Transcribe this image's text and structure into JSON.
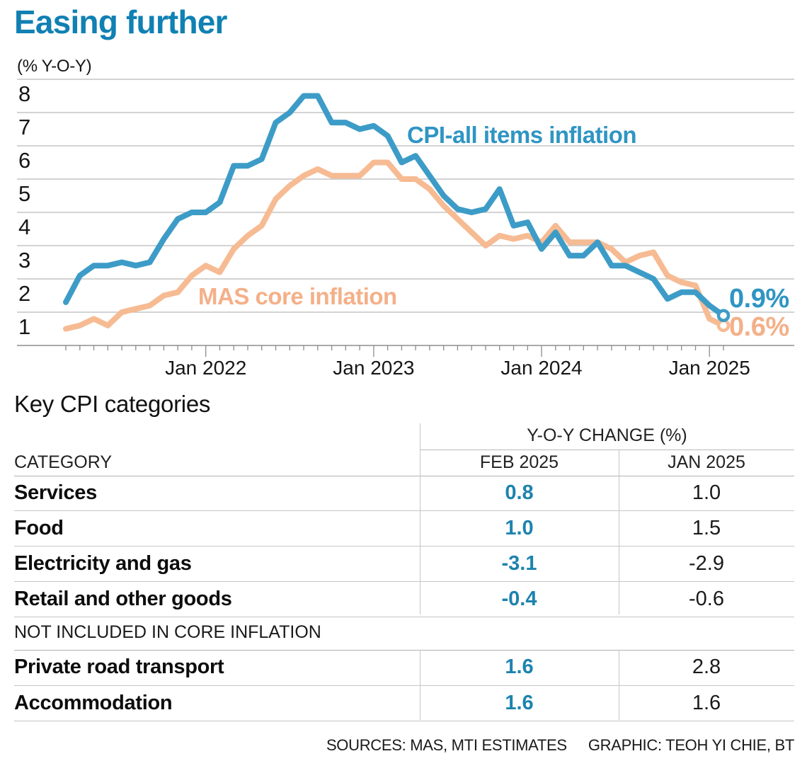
{
  "header": {
    "title": "Easing further"
  },
  "chart_data": {
    "type": "line",
    "title": "Easing further",
    "unit_label": "(% Y-O-Y)",
    "x_frequency": "monthly",
    "x_start": "Mar 2021",
    "x_end": "Feb 2025",
    "x_tick_labels": [
      "Jan 2022",
      "Jan 2023",
      "Jan 2024",
      "Jan 2025"
    ],
    "x_tick_month_index": [
      10,
      22,
      34,
      46
    ],
    "ylim": [
      0,
      8
    ],
    "yticks": [
      1,
      2,
      3,
      4,
      5,
      6,
      7,
      8
    ],
    "grid": true,
    "series": [
      {
        "name": "CPI-all items inflation",
        "color": "#3d9cc7",
        "label_color": "#2f95c3",
        "end_label": "0.9%",
        "values": [
          1.3,
          2.1,
          2.4,
          2.4,
          2.5,
          2.4,
          2.5,
          3.2,
          3.8,
          4.0,
          4.0,
          4.3,
          5.4,
          5.4,
          5.6,
          6.7,
          7.0,
          7.5,
          7.5,
          6.7,
          6.7,
          6.5,
          6.6,
          6.3,
          5.5,
          5.7,
          5.1,
          4.5,
          4.1,
          4.0,
          4.1,
          4.7,
          3.6,
          3.7,
          2.9,
          3.4,
          2.7,
          2.7,
          3.1,
          2.4,
          2.4,
          2.2,
          2.0,
          1.4,
          1.6,
          1.6,
          1.2,
          0.9
        ]
      },
      {
        "name": "MAS core inflation",
        "color": "#f6bb93",
        "label_color": "#f4b089",
        "end_label": "0.6%",
        "values": [
          0.5,
          0.6,
          0.8,
          0.6,
          1.0,
          1.1,
          1.2,
          1.5,
          1.6,
          2.1,
          2.4,
          2.2,
          2.9,
          3.3,
          3.6,
          4.4,
          4.8,
          5.1,
          5.3,
          5.1,
          5.1,
          5.1,
          5.5,
          5.5,
          5.0,
          5.0,
          4.7,
          4.2,
          3.8,
          3.4,
          3.0,
          3.3,
          3.2,
          3.3,
          3.1,
          3.6,
          3.1,
          3.1,
          3.1,
          2.9,
          2.5,
          2.7,
          2.8,
          2.1,
          1.9,
          1.8,
          0.8,
          0.6
        ]
      }
    ]
  },
  "table": {
    "title": "Key CPI categories",
    "group_header": "Y-O-Y CHANGE (%)",
    "columns": [
      "CATEGORY",
      "FEB 2025",
      "JAN 2025"
    ],
    "rows": [
      {
        "category": "Services",
        "feb": "0.8",
        "jan": "1.0"
      },
      {
        "category": "Food",
        "feb": "1.0",
        "jan": "1.5"
      },
      {
        "category": "Electricity and gas",
        "feb": "-3.1",
        "jan": "-2.9"
      },
      {
        "category": "Retail and other goods",
        "feb": "-0.4",
        "jan": "-0.6"
      }
    ],
    "section_note": "NOT INCLUDED IN CORE INFLATION",
    "rows_excluded": [
      {
        "category": "Private road transport",
        "feb": "1.6",
        "jan": "2.8"
      },
      {
        "category": "Accommodation",
        "feb": "1.6",
        "jan": "1.6"
      }
    ]
  },
  "footer": {
    "sources": "SOURCES: MAS, MTI ESTIMATES",
    "credit": "GRAPHIC: TEOH YI CHIE, BT"
  }
}
